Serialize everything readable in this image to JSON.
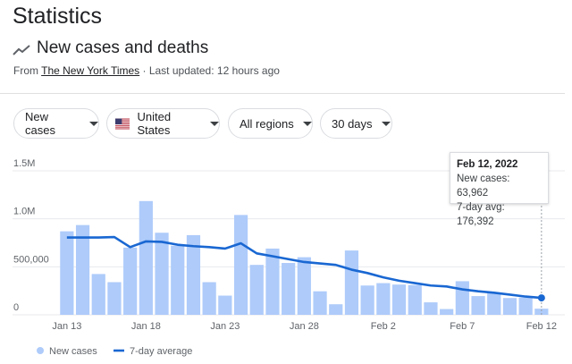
{
  "header": {
    "title": "Statistics",
    "subtitle": "New cases and deaths",
    "source_prefix": "From ",
    "source_link": "The New York Times",
    "source_suffix": " · Last updated: 12 hours ago"
  },
  "filters": [
    {
      "label": "New cases",
      "icon": "caret-down-icon"
    },
    {
      "label": "United States",
      "icon": "us-flag-icon"
    },
    {
      "label": "All regions",
      "icon": "caret-down-icon"
    },
    {
      "label": "30 days",
      "icon": "caret-down-icon"
    }
  ],
  "tooltip": {
    "date": "Feb 12, 2022",
    "line1": "New cases: 63,962",
    "line2": "7-day avg: 176,392"
  },
  "legend": {
    "bars_label": "New cases",
    "line_label": "7-day average"
  },
  "colors": {
    "bar": "#aecbfa",
    "line": "#1967d2"
  },
  "chart_data": {
    "type": "bar",
    "title": "",
    "x": [
      "Jan 13",
      "Jan 14",
      "Jan 15",
      "Jan 16",
      "Jan 17",
      "Jan 18",
      "Jan 19",
      "Jan 20",
      "Jan 21",
      "Jan 22",
      "Jan 23",
      "Jan 24",
      "Jan 25",
      "Jan 26",
      "Jan 27",
      "Jan 28",
      "Jan 29",
      "Jan 30",
      "Jan 31",
      "Feb 1",
      "Feb 2",
      "Feb 3",
      "Feb 4",
      "Feb 5",
      "Feb 6",
      "Feb 7",
      "Feb 8",
      "Feb 9",
      "Feb 10",
      "Feb 11",
      "Feb 12"
    ],
    "x_tick_labels": [
      "Jan 13",
      "Jan 18",
      "Jan 23",
      "Jan 28",
      "Feb 2",
      "Feb 7",
      "Feb 12"
    ],
    "y_tick_labels": [
      "0",
      "500,000",
      "1.0M",
      "1.5M"
    ],
    "ylim": [
      0,
      1500000
    ],
    "series": [
      {
        "name": "New cases",
        "type": "bar",
        "values": [
          870000,
          935000,
          425000,
          340000,
          700000,
          1185000,
          855000,
          720000,
          830000,
          340000,
          200000,
          1040000,
          520000,
          690000,
          540000,
          600000,
          245000,
          110000,
          670000,
          305000,
          330000,
          315000,
          310000,
          130000,
          60000,
          350000,
          195000,
          230000,
          175000,
          180000,
          63962
        ]
      },
      {
        "name": "7-day average",
        "type": "line",
        "values": [
          805000,
          805000,
          805000,
          810000,
          705000,
          765000,
          760000,
          730000,
          715000,
          705000,
          690000,
          745000,
          640000,
          610000,
          580000,
          550000,
          535000,
          520000,
          470000,
          435000,
          390000,
          355000,
          330000,
          305000,
          295000,
          265000,
          245000,
          230000,
          210000,
          190000,
          176392
        ]
      }
    ],
    "grid": true,
    "legend_position": "bottom-left"
  }
}
